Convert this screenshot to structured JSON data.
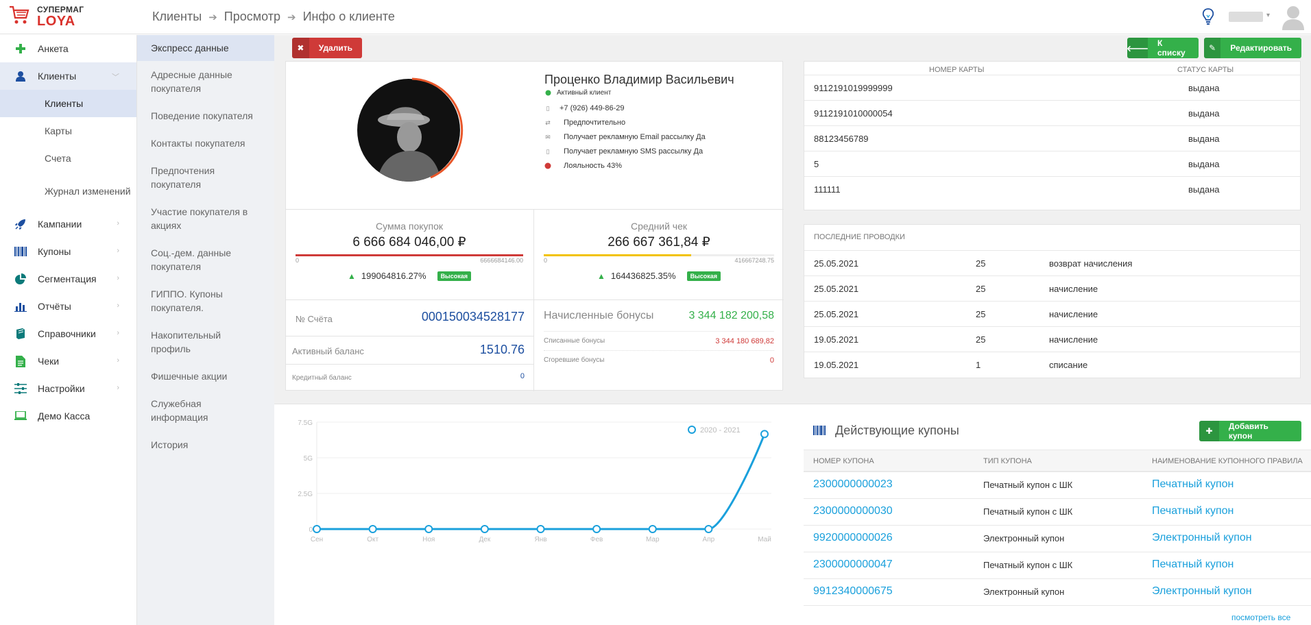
{
  "logo": {
    "small": "СУПЕРМАГ",
    "big": "LOYA"
  },
  "breadcrumb": [
    "Клиенты",
    "Просмотр",
    "Инфо о клиенте"
  ],
  "nav": {
    "items": [
      {
        "label": "Анкета"
      },
      {
        "label": "Клиенты"
      },
      {
        "label": "Кампании"
      },
      {
        "label": "Купоны"
      },
      {
        "label": "Сегментация"
      },
      {
        "label": "Отчёты"
      },
      {
        "label": "Справочники"
      },
      {
        "label": "Чеки"
      },
      {
        "label": "Настройки"
      },
      {
        "label": "Демо Касса"
      }
    ],
    "sub": [
      "Клиенты",
      "Карты",
      "Счета",
      "Журнал изменений"
    ]
  },
  "subnav": [
    "Экспресс данные",
    "Адресные данные покупателя",
    "Поведение покупателя",
    "Контакты покупателя",
    "Предпочтения покупателя",
    "Участие покупателя в акциях",
    "Соц.-дем. данные покупателя",
    "ГИППО. Купоны покупателя.",
    "Накопительный профиль",
    "Фишечные акции",
    "Служебная информация",
    "История"
  ],
  "buttons": {
    "delete": "Удалить",
    "to_list": "К списку",
    "edit": "Редактировать",
    "add_coupon": "Добавить купон"
  },
  "profile": {
    "name": "Проценко Владимир Васильевич",
    "status": "Активный клиент",
    "phone": "+7 (926) 449-86-29",
    "preferred": "Предпочтительно",
    "email_sub": "Получает рекламную Email рассылку Да",
    "sms_sub": "Получает рекламную SMS рассылку Да",
    "loyalty": "Лояльность 43%",
    "loyalty_pct": 43
  },
  "stats": {
    "purchases": {
      "title": "Сумма покупок",
      "value": "6 666 684 046,00 ₽",
      "min": "0",
      "max": "6666684146.00",
      "fill": 1.0,
      "pct": "199064816.27%",
      "badge": "Высокая"
    },
    "avg_check": {
      "title": "Средний чек",
      "value": "266 667 361,84 ₽",
      "min": "0",
      "max": "416667248.75",
      "fill": 0.64,
      "pct": "164436825.35%",
      "badge": "Высокая"
    }
  },
  "account": {
    "number_label": "№ Счёта",
    "number": "000150034528177",
    "active_label": "Активный баланс",
    "active": "1510.76",
    "credit_label": "Кредитный баланс",
    "credit": "0"
  },
  "bonuses": {
    "accrued_label": "Начисленные бонусы",
    "accrued": "3 344 182 200,58",
    "written_label": "Списанные бонусы",
    "written": "3 344 180 689,82",
    "burned_label": "Сгоревшие бонусы",
    "burned": "0"
  },
  "cards": {
    "headers": [
      "НОМЕР КАРТЫ",
      "СТАТУС КАРТЫ"
    ],
    "rows": [
      [
        "9112191019999999",
        "выдана"
      ],
      [
        "9112191010000054",
        "выдана"
      ],
      [
        "88123456789",
        "выдана"
      ],
      [
        "5",
        "выдана"
      ],
      [
        "111111",
        "выдана"
      ]
    ]
  },
  "transactions": {
    "title": "ПОСЛЕДНИЕ ПРОВОДКИ",
    "rows": [
      [
        "25.05.2021",
        "25",
        "возврат начисления"
      ],
      [
        "25.05.2021",
        "25",
        "начисление"
      ],
      [
        "25.05.2021",
        "25",
        "начисление"
      ],
      [
        "19.05.2021",
        "25",
        "начисление"
      ],
      [
        "19.05.2021",
        "1",
        "списание"
      ]
    ]
  },
  "coupons": {
    "title": "Действующие купоны",
    "headers": [
      "НОМЕР КУПОНА",
      "ТИП КУПОНА",
      "НАИМЕНОВАНИЕ КУПОННОГО ПРАВИЛА"
    ],
    "rows": [
      [
        "2300000000023",
        "Печатный купон с ШК",
        "Печатный купон"
      ],
      [
        "2300000000030",
        "Печатный купон с ШК",
        "Печатный купон"
      ],
      [
        "9920000000026",
        "Электронный купон",
        "Электронный купон"
      ],
      [
        "2300000000047",
        "Печатный купон с ШК",
        "Печатный купон"
      ],
      [
        "9912340000675",
        "Электронный купон",
        "Электронный купон"
      ]
    ],
    "see_all": "посмотреть все"
  },
  "chart_data": {
    "type": "line",
    "categories": [
      "Сен",
      "Окт",
      "Ноя",
      "Дек",
      "Янв",
      "Фев",
      "Мар",
      "Апр",
      "Май"
    ],
    "series": [
      {
        "name": "2020 - 2021",
        "values": [
          0,
          0,
          0,
          0,
          0,
          0,
          0,
          0,
          6666684046
        ]
      }
    ],
    "yticks": [
      "0",
      "2.5G",
      "5G",
      "7.5G"
    ],
    "ylim": [
      0,
      7500000000
    ],
    "color": "#1aa0dc"
  },
  "colors": {
    "red": "#cf3a38",
    "green": "#34b04a",
    "blue": "#1d4fa0",
    "accent": "#1aa0dc"
  }
}
